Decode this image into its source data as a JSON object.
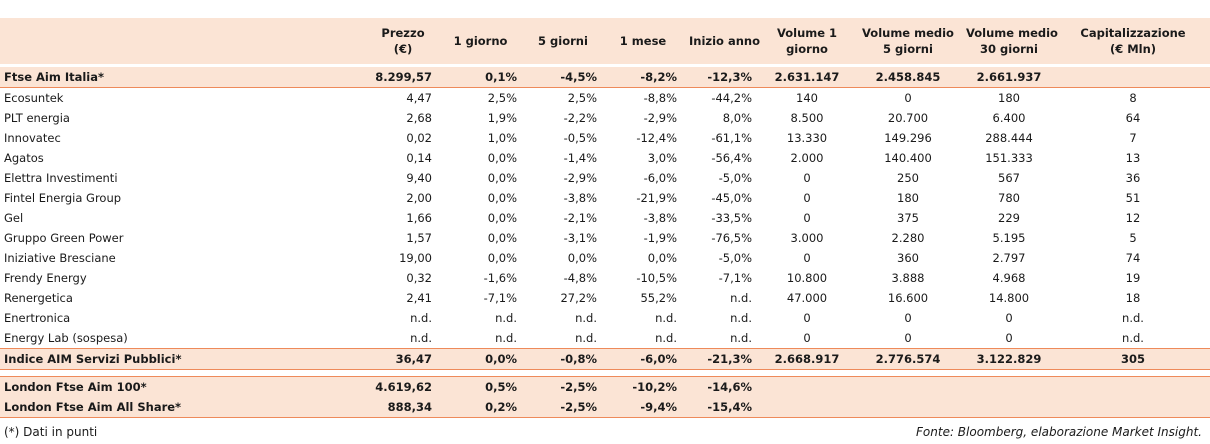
{
  "table": {
    "columns": [
      [],
      [
        "Prezzo",
        "(€)"
      ],
      [
        "1 giorno"
      ],
      [
        "5 giorni"
      ],
      [
        "1 mese"
      ],
      [
        "Inizio anno"
      ],
      [
        "Volume 1",
        "giorno"
      ],
      [
        "Volume medio",
        "5 giorni"
      ],
      [
        "Volume medio",
        "30 giorni"
      ],
      [
        "Capitalizzazione",
        "(€ Mln)"
      ]
    ],
    "sections": [
      {
        "rows": [
          [
            "Ftse Aim Italia*",
            "8.299,57",
            "0,1%",
            "-4,5%",
            "-8,2%",
            "-12,3%",
            "2.631.147",
            "2.458.845",
            "2.661.937"
          ]
        ]
      },
      {
        "rows": [
          [
            "Ecosuntek",
            "4,47",
            "2,5%",
            "2,5%",
            "-8,8%",
            "-44,2%",
            "140",
            "0",
            "180",
            "8"
          ],
          [
            "PLT energia",
            "2,68",
            "1,9%",
            "-2,2%",
            "-2,9%",
            "8,0%",
            "8.500",
            "20.700",
            "6.400",
            "64"
          ],
          [
            "Innovatec",
            "0,02",
            "1,0%",
            "-0,5%",
            "-12,4%",
            "-61,1%",
            "13.330",
            "149.296",
            "288.444",
            "7"
          ],
          [
            "Agatos",
            "0,14",
            "0,0%",
            "-1,4%",
            "3,0%",
            "-56,4%",
            "2.000",
            "140.400",
            "151.333",
            "13"
          ],
          [
            "Elettra Investimenti",
            "9,40",
            "0,0%",
            "-2,9%",
            "-6,0%",
            "-5,0%",
            "0",
            "250",
            "567",
            "36"
          ],
          [
            "Fintel Energia Group",
            "2,00",
            "0,0%",
            "-3,8%",
            "-21,9%",
            "-45,0%",
            "0",
            "180",
            "780",
            "51"
          ],
          [
            "Gel",
            "1,66",
            "0,0%",
            "-2,1%",
            "-3,8%",
            "-33,5%",
            "0",
            "375",
            "229",
            "12"
          ],
          [
            "Gruppo Green Power",
            "1,57",
            "0,0%",
            "-3,1%",
            "-1,9%",
            "-76,5%",
            "3.000",
            "2.280",
            "5.195",
            "5"
          ],
          [
            "Iniziative Bresciane",
            "19,00",
            "0,0%",
            "0,0%",
            "0,0%",
            "-5,0%",
            "0",
            "360",
            "2.797",
            "74"
          ],
          [
            "Frendy Energy",
            "0,32",
            "-1,6%",
            "-4,8%",
            "-10,5%",
            "-7,1%",
            "10.800",
            "3.888",
            "4.968",
            "19"
          ],
          [
            "Renergetica",
            "2,41",
            "-7,1%",
            "27,2%",
            "55,2%",
            "n.d.",
            "47.000",
            "16.600",
            "14.800",
            "18"
          ],
          [
            "Enertronica",
            "n.d.",
            "n.d.",
            "n.d.",
            "n.d.",
            "n.d.",
            "0",
            "0",
            "0",
            "n.d."
          ],
          [
            "Energy Lab (sospesa)",
            "n.d.",
            "n.d.",
            "n.d.",
            "n.d.",
            "n.d.",
            "0",
            "0",
            "0",
            "n.d."
          ]
        ]
      },
      {
        "rows": [
          [
            "Indice AIM Servizi Pubblici*",
            "36,47",
            "0,0%",
            "-0,8%",
            "-6,0%",
            "-21,3%",
            "2.668.917",
            "2.776.574",
            "3.122.829",
            "305"
          ]
        ]
      },
      {
        "rows": [
          [
            "London Ftse Aim 100*",
            "4.619,62",
            "0,5%",
            "-2,5%",
            "-10,2%",
            "-14,6%"
          ],
          [
            "London Ftse Aim All Share*",
            "888,34",
            "0,2%",
            "-2,5%",
            "-9,4%",
            "-15,4%"
          ]
        ]
      }
    ]
  },
  "footnote": "(*) Dati in punti",
  "source": "Fonte: Bloomberg, elaborazione Market Insight."
}
